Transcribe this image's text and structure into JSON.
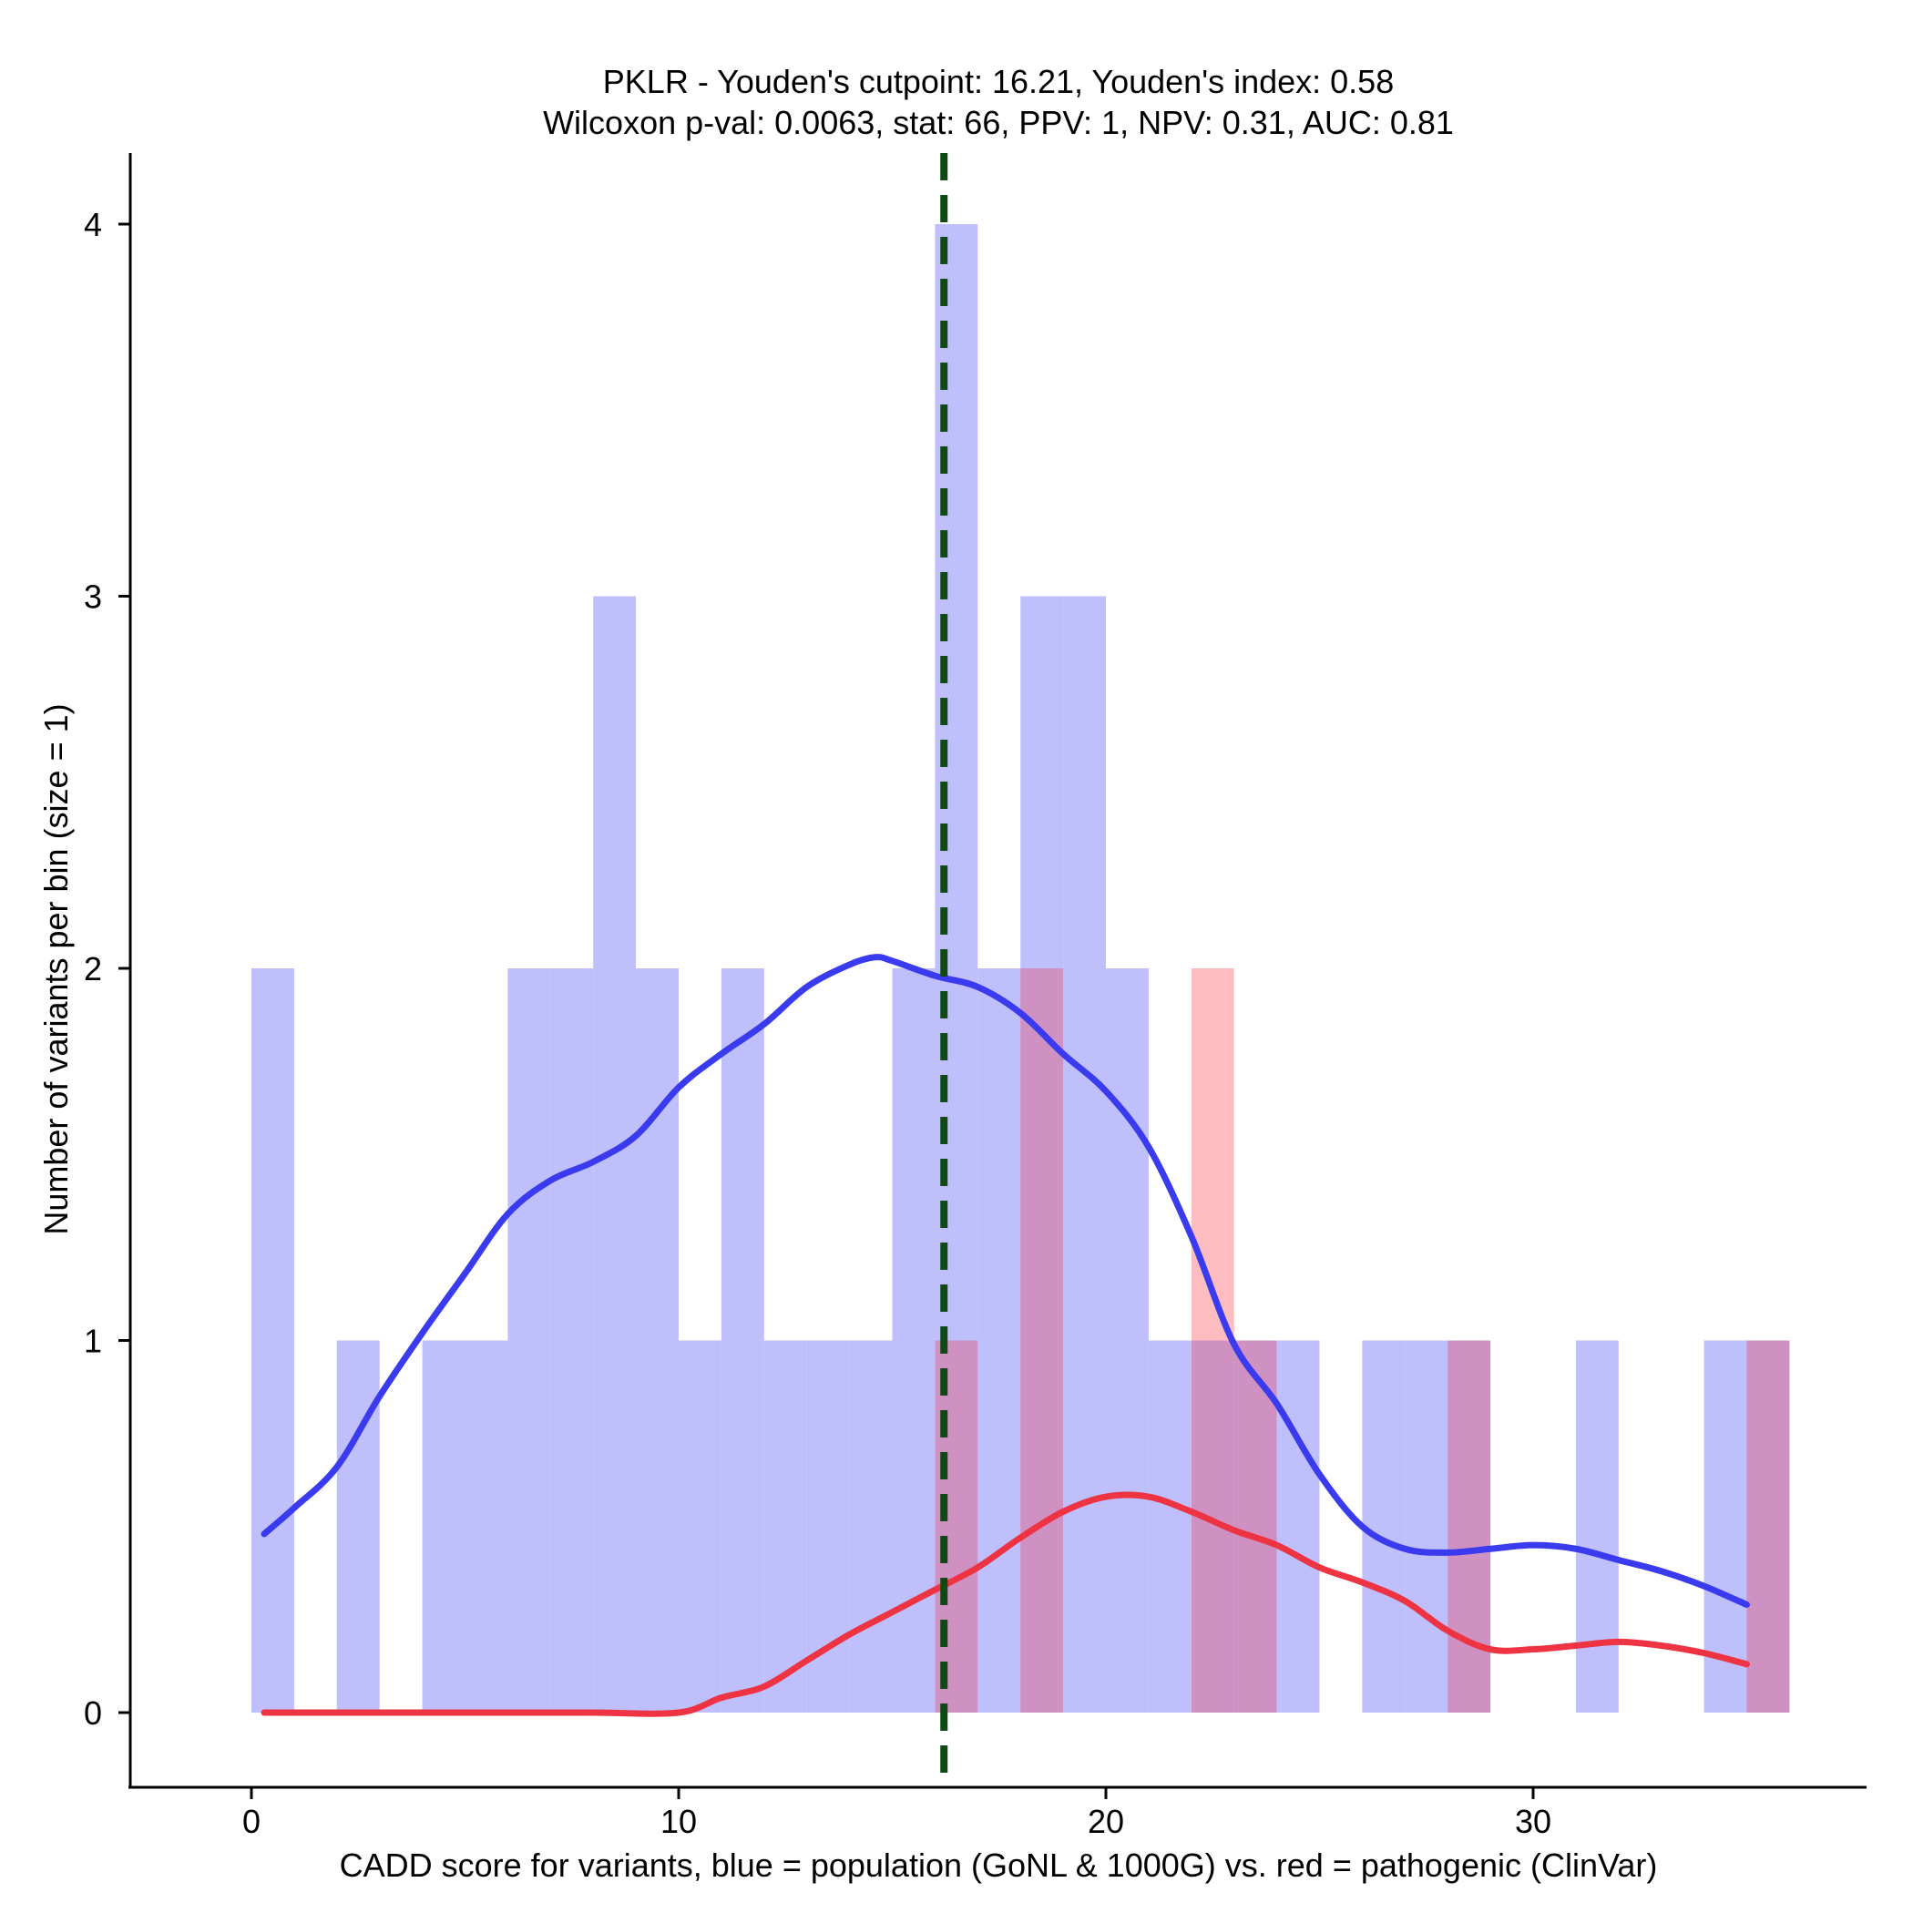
{
  "chart_data": {
    "type": "histogram",
    "title_line1": "PKLR - Youden's cutpoint: 16.21, Youden's index: 0.58",
    "title_line2": "Wilcoxon p-val: 0.0063, stat: 66, PPV: 1, NPV: 0.31, AUC: 0.81",
    "xlabel": "CADD score for variants, blue = population (GoNL & 1000G) vs. red = pathogenic (ClinVar)",
    "ylabel": "Number of variants per bin (size = 1)",
    "xlim": [
      -2.9,
      37.8
    ],
    "ylim": [
      -0.2,
      4.2
    ],
    "x_ticks": [
      0,
      10,
      20,
      30
    ],
    "y_ticks": [
      0,
      1,
      2,
      3,
      4
    ],
    "bin_size": 1,
    "cutpoint": 16.21,
    "colors": {
      "population_bar": "#bfbffb",
      "pathogenic_bar": "#fdbdc0",
      "overlap_bar": "#ce91c1",
      "population_line": "#3a3aee",
      "pathogenic_line": "#ee3343",
      "cutpoint_line": "#0f4a12"
    },
    "series": [
      {
        "name": "population",
        "bins": [
          {
            "start": 0,
            "count": 2
          },
          {
            "start": 2,
            "count": 1
          },
          {
            "start": 4,
            "count": 1
          },
          {
            "start": 5,
            "count": 1
          },
          {
            "start": 6,
            "count": 2
          },
          {
            "start": 7,
            "count": 2
          },
          {
            "start": 8,
            "count": 3
          },
          {
            "start": 9,
            "count": 2
          },
          {
            "start": 10,
            "count": 1
          },
          {
            "start": 11,
            "count": 2
          },
          {
            "start": 12,
            "count": 1
          },
          {
            "start": 13,
            "count": 1
          },
          {
            "start": 14,
            "count": 1
          },
          {
            "start": 15,
            "count": 2
          },
          {
            "start": 16,
            "count": 4
          },
          {
            "start": 17,
            "count": 2
          },
          {
            "start": 18,
            "count": 3
          },
          {
            "start": 19,
            "count": 3
          },
          {
            "start": 20,
            "count": 2
          },
          {
            "start": 21,
            "count": 1
          },
          {
            "start": 22,
            "count": 1
          },
          {
            "start": 23,
            "count": 1
          },
          {
            "start": 24,
            "count": 1
          },
          {
            "start": 26,
            "count": 1
          },
          {
            "start": 27,
            "count": 1
          },
          {
            "start": 28,
            "count": 1
          },
          {
            "start": 31,
            "count": 1
          },
          {
            "start": 34,
            "count": 1
          },
          {
            "start": 35,
            "count": 1
          }
        ],
        "density": {
          "x": [
            0.3,
            1,
            2,
            3,
            4,
            5,
            6,
            7,
            8,
            9,
            10,
            11,
            12,
            13,
            14,
            14.6,
            15,
            16,
            17,
            18,
            19,
            20,
            21,
            22,
            23,
            24,
            25,
            26,
            27,
            28,
            29,
            30,
            31,
            32,
            33,
            34,
            35
          ],
          "y": [
            0.48,
            0.55,
            0.66,
            0.85,
            1.02,
            1.18,
            1.34,
            1.43,
            1.48,
            1.55,
            1.68,
            1.77,
            1.85,
            1.95,
            2.01,
            2.03,
            2.02,
            1.98,
            1.95,
            1.88,
            1.77,
            1.67,
            1.52,
            1.28,
            0.99,
            0.83,
            0.64,
            0.5,
            0.44,
            0.43,
            0.44,
            0.45,
            0.44,
            0.41,
            0.38,
            0.34,
            0.29
          ]
        }
      },
      {
        "name": "pathogenic",
        "bins": [
          {
            "start": 16,
            "count": 1
          },
          {
            "start": 18,
            "count": 2
          },
          {
            "start": 22,
            "count": 2
          },
          {
            "start": 23,
            "count": 1
          },
          {
            "start": 28,
            "count": 1
          },
          {
            "start": 35,
            "count": 1
          }
        ],
        "density": {
          "x": [
            0.3,
            2,
            4,
            6,
            8,
            10,
            11,
            12,
            13,
            14,
            15,
            16,
            17,
            18,
            19,
            20,
            21,
            22,
            23,
            24,
            25,
            26,
            27,
            28,
            29,
            30,
            31,
            32,
            33,
            34,
            35
          ],
          "y": [
            0,
            0,
            0,
            0,
            0,
            0,
            0.04,
            0.07,
            0.14,
            0.21,
            0.27,
            0.33,
            0.39,
            0.47,
            0.54,
            0.58,
            0.58,
            0.54,
            0.49,
            0.45,
            0.39,
            0.35,
            0.3,
            0.22,
            0.17,
            0.17,
            0.18,
            0.19,
            0.18,
            0.16,
            0.13
          ]
        }
      }
    ]
  }
}
